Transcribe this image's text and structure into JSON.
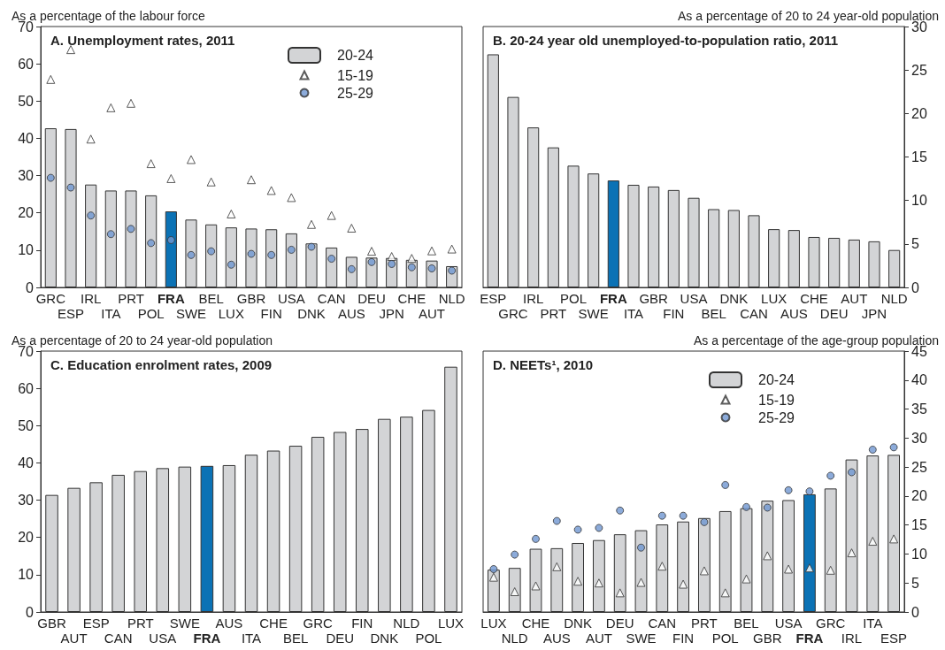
{
  "chart_data": [
    {
      "type": "bar",
      "subtitle": "As a percentage of the labour force",
      "title": "A. Unemployment rates, 2011",
      "categories": [
        "GRC",
        "ESP",
        "IRL",
        "ITA",
        "PRT",
        "POL",
        "FRA",
        "SWE",
        "BEL",
        "LUX",
        "GBR",
        "FIN",
        "USA",
        "DNK",
        "CAN",
        "AUS",
        "DEU",
        "JPN",
        "CHE",
        "AUT",
        "NLD"
      ],
      "series": [
        {
          "name": "20-24",
          "colors": [
            "#d3d4d6",
            "#d3d4d6",
            "#d3d4d6",
            "#d3d4d6",
            "#d3d4d6",
            "#d3d4d6",
            "#0b72b5",
            "#d3d4d6",
            "#d3d4d6",
            "#d3d4d6",
            "#d3d4d6",
            "#d3d4d6",
            "#d3d4d6",
            "#d3d4d6",
            "#d3d4d6",
            "#d3d4d6",
            "#d3d4d6",
            "#d3d4d6",
            "#d3d4d6",
            "#d3d4d6",
            "#d3d4d6"
          ],
          "values": [
            42.7,
            42.5,
            27.6,
            26.0,
            26.0,
            24.7,
            20.4,
            18.2,
            16.9,
            16.1,
            15.8,
            15.6,
            14.5,
            11.8,
            10.7,
            8.2,
            8.0,
            7.9,
            7.4,
            7.2,
            5.7
          ]
        },
        {
          "name": "15-19",
          "type": "scatter",
          "marker": "triangle",
          "color": "#ffffff",
          "values": [
            55.8,
            63.8,
            39.8,
            48.2,
            49.4,
            33.2,
            29.2,
            34.3,
            28.3,
            19.7,
            28.9,
            26.0,
            24.1,
            16.9,
            19.3,
            15.9,
            9.7,
            8.3,
            7.8,
            9.8,
            10.3
          ]
        },
        {
          "name": "25-29",
          "type": "scatter",
          "marker": "circle",
          "color": "#6f96d1",
          "values": [
            29.4,
            26.8,
            19.3,
            14.3,
            15.7,
            11.9,
            12.7,
            8.7,
            9.7,
            6.1,
            9.0,
            8.7,
            10.1,
            10.9,
            7.7,
            4.9,
            6.8,
            6.3,
            5.4,
            5.1,
            4.5
          ]
        }
      ],
      "ylim": [
        0,
        70
      ],
      "yticks": [
        0,
        10,
        20,
        30,
        40,
        50,
        60,
        70
      ],
      "grid": false,
      "legend": "top right"
    },
    {
      "type": "bar",
      "subtitle": "As a percentage of 20 to 24 year-old population",
      "title": "B. 20-24 year old unemployed-to-population ratio, 2011",
      "categories": [
        "ESP",
        "GRC",
        "IRL",
        "PRT",
        "POL",
        "SWE",
        "FRA",
        "ITA",
        "GBR",
        "FIN",
        "USA",
        "BEL",
        "DNK",
        "CAN",
        "LUX",
        "AUS",
        "CHE",
        "DEU",
        "AUT",
        "JPN",
        "NLD"
      ],
      "colors": [
        "#d3d4d6",
        "#d3d4d6",
        "#d3d4d6",
        "#d3d4d6",
        "#d3d4d6",
        "#d3d4d6",
        "#0b72b5",
        "#d3d4d6",
        "#d3d4d6",
        "#d3d4d6",
        "#d3d4d6",
        "#d3d4d6",
        "#d3d4d6",
        "#d3d4d6",
        "#d3d4d6",
        "#d3d4d6",
        "#d3d4d6",
        "#d3d4d6",
        "#d3d4d6",
        "#d3d4d6",
        "#d3d4d6"
      ],
      "values": [
        26.8,
        21.9,
        18.4,
        16.1,
        14.0,
        13.1,
        12.3,
        11.8,
        11.6,
        11.2,
        10.3,
        9.0,
        8.9,
        8.3,
        6.7,
        6.6,
        5.8,
        5.7,
        5.5,
        5.3,
        4.3
      ],
      "ylim": [
        0,
        30
      ],
      "yticks": [
        0,
        5,
        10,
        15,
        20,
        25,
        30
      ],
      "grid": false,
      "legend": false
    },
    {
      "type": "bar",
      "subtitle": "As a percentage of 20 to 24 year-old population",
      "title": "C. Education enrolment rates, 2009",
      "categories": [
        "GBR",
        "AUT",
        "ESP",
        "CAN",
        "PRT",
        "USA",
        "SWE",
        "FRA",
        "AUS",
        "ITA",
        "CHE",
        "BEL",
        "GRC",
        "DEU",
        "FIN",
        "DNK",
        "NLD",
        "POL",
        "LUX"
      ],
      "colors": [
        "#d3d4d6",
        "#d3d4d6",
        "#d3d4d6",
        "#d3d4d6",
        "#d3d4d6",
        "#d3d4d6",
        "#d3d4d6",
        "#0b72b5",
        "#d3d4d6",
        "#d3d4d6",
        "#d3d4d6",
        "#d3d4d6",
        "#d3d4d6",
        "#d3d4d6",
        "#d3d4d6",
        "#d3d4d6",
        "#d3d4d6",
        "#d3d4d6",
        "#d3d4d6"
      ],
      "values": [
        31.4,
        33.3,
        34.8,
        36.8,
        37.8,
        38.6,
        39.0,
        39.2,
        39.4,
        42.2,
        43.3,
        44.6,
        47.0,
        48.3,
        49.1,
        51.8,
        52.4,
        54.2,
        65.8
      ],
      "ylim": [
        0,
        70
      ],
      "yticks": [
        0,
        10,
        20,
        30,
        40,
        50,
        60,
        70
      ],
      "grid": false,
      "legend": false
    },
    {
      "type": "bar",
      "subtitle": "As a percentage of the age-group population",
      "title": "D. NEETs¹, 2010",
      "categories": [
        "LUX",
        "NLD",
        "CHE",
        "AUS",
        "DNK",
        "AUT",
        "DEU",
        "SWE",
        "CAN",
        "FIN",
        "PRT",
        "POL",
        "BEL",
        "GBR",
        "USA",
        "FRA",
        "GRC",
        "IRL",
        "ITA",
        "ESP"
      ],
      "series": [
        {
          "name": "20-24",
          "colors": [
            "#d3d4d6",
            "#d3d4d6",
            "#d3d4d6",
            "#d3d4d6",
            "#d3d4d6",
            "#d3d4d6",
            "#d3d4d6",
            "#d3d4d6",
            "#d3d4d6",
            "#d3d4d6",
            "#d3d4d6",
            "#d3d4d6",
            "#d3d4d6",
            "#d3d4d6",
            "#d3d4d6",
            "#0b72b5",
            "#d3d4d6",
            "#d3d4d6",
            "#d3d4d6",
            "#d3d4d6"
          ],
          "values": [
            7.3,
            7.6,
            10.9,
            11.0,
            11.9,
            12.4,
            13.4,
            14.1,
            15.1,
            15.6,
            16.2,
            17.4,
            17.9,
            19.2,
            19.3,
            20.3,
            21.3,
            26.3,
            27.0,
            27.1
          ]
        },
        {
          "name": "15-19",
          "type": "scatter",
          "marker": "triangle",
          "color": "#ffffff",
          "values": [
            6.0,
            3.5,
            4.5,
            7.8,
            5.3,
            5.0,
            3.3,
            5.1,
            7.9,
            4.8,
            7.1,
            3.3,
            5.7,
            9.7,
            7.4,
            7.6,
            7.2,
            10.2,
            12.2,
            12.6
          ]
        },
        {
          "name": "25-29",
          "type": "scatter",
          "marker": "circle",
          "color": "#6f96d1",
          "values": [
            7.4,
            9.9,
            12.6,
            15.7,
            14.2,
            14.5,
            17.5,
            11.1,
            16.6,
            16.6,
            15.5,
            21.9,
            18.1,
            18.0,
            21.0,
            20.8,
            23.5,
            24.1,
            28.0,
            28.4
          ]
        }
      ],
      "ylim": [
        0,
        45
      ],
      "yticks": [
        0,
        5,
        10,
        15,
        20,
        25,
        30,
        35,
        40,
        45
      ],
      "grid": false,
      "legend": "top"
    }
  ]
}
